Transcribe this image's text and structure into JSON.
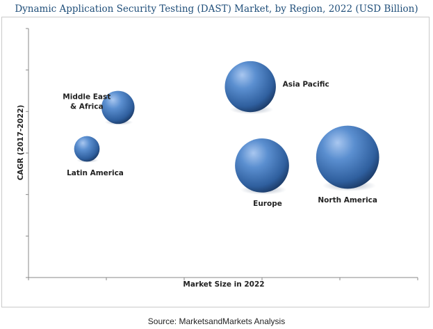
{
  "title": "Dynamic Application Security Testing (DAST) Market, by Region, 2022 (USD Billion)",
  "source": "Source: MarketsandMarkets Analysis",
  "colors": {
    "bubble": "#2f5f9e",
    "bubble_highlight": "#a9c7f0",
    "axis": "#888888",
    "title": "#1f4e79"
  },
  "chart_data": {
    "type": "bubble",
    "title": "Dynamic Application Security Testing (DAST) Market, by Region, 2022 (USD Billion)",
    "xlabel": "Market Size in 2022",
    "ylabel": "CAGR (2017-2022)",
    "xlim": [
      0,
      10
    ],
    "ylim": [
      0,
      6
    ],
    "grid": false,
    "points": [
      {
        "label": [
          "Middle East",
          "& Africa"
        ],
        "x": 2.3,
        "y": 4.1,
        "size": 2.2
      },
      {
        "label": [
          "Latin America"
        ],
        "x": 1.5,
        "y": 3.1,
        "size": 1.7
      },
      {
        "label": [
          "Asia Pacific"
        ],
        "x": 5.7,
        "y": 4.6,
        "size": 3.4
      },
      {
        "label": [
          "Europe"
        ],
        "x": 6.0,
        "y": 2.7,
        "size": 3.6
      },
      {
        "label": [
          "North America"
        ],
        "x": 8.2,
        "y": 2.9,
        "size": 4.2
      }
    ]
  }
}
